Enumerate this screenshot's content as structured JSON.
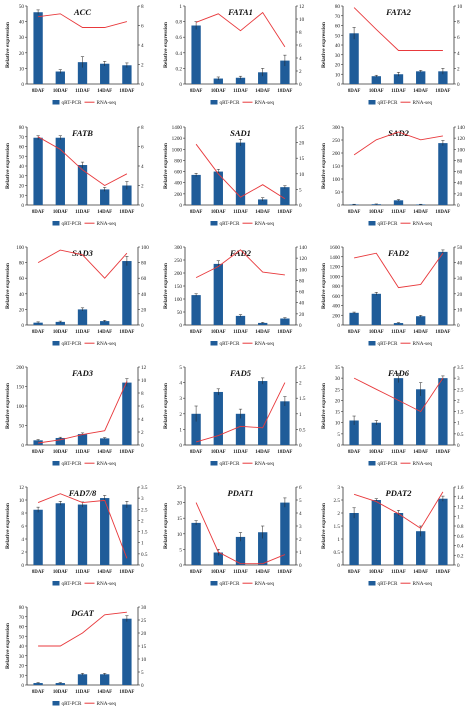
{
  "chart_data": [
    {
      "type": "bar",
      "title": "ACC",
      "categories": [
        "8DAF",
        "10DAF",
        "11DAF",
        "14DAF",
        "18DAF"
      ],
      "ylabel": "Relative expression",
      "ylim_left": [
        0,
        50
      ],
      "yticks_left": [
        0,
        10,
        20,
        30,
        40,
        50
      ],
      "ylim_right": [
        0,
        8
      ],
      "yticks_right": [
        0,
        2,
        4,
        6,
        8
      ],
      "series": [
        {
          "name": "qRT-PCR",
          "kind": "bar",
          "axis": "left",
          "color": "#1f5c99",
          "values": [
            46,
            8,
            14,
            13,
            12
          ],
          "errors": [
            1.5,
            1.2,
            3.5,
            1.5,
            1.5
          ]
        },
        {
          "name": "RNA-seq",
          "kind": "line",
          "axis": "right",
          "color": "#e8393c",
          "values": [
            6.9,
            7.2,
            5.8,
            5.8,
            6.4
          ]
        }
      ],
      "legend": "bottom"
    },
    {
      "type": "bar",
      "title": "FATA1",
      "categories": [
        "8DAF",
        "10DAF",
        "11DAF",
        "14DAF",
        "18DAF"
      ],
      "ylabel": "Relative expression",
      "ylim_left": [
        0,
        1
      ],
      "yticks_left": [
        0,
        0.2,
        0.4,
        0.6,
        0.8,
        1
      ],
      "ylim_right": [
        0,
        12
      ],
      "yticks_right": [
        0,
        2,
        4,
        6,
        8,
        10,
        12
      ],
      "series": [
        {
          "name": "qRT-PCR",
          "kind": "bar",
          "axis": "left",
          "color": "#1f5c99",
          "values": [
            0.75,
            0.07,
            0.08,
            0.15,
            0.3
          ],
          "errors": [
            0.05,
            0.02,
            0.02,
            0.05,
            0.07
          ]
        },
        {
          "name": "RNA-seq",
          "kind": "line",
          "axis": "right",
          "color": "#e8393c",
          "values": [
            9.5,
            10.8,
            8.2,
            11,
            5.7
          ]
        }
      ],
      "legend": "bottom"
    },
    {
      "type": "bar",
      "title": "FATA2",
      "categories": [
        "8DAF",
        "10DAF",
        "11DAF",
        "14DAF",
        "18DAF"
      ],
      "ylabel": "Relative expression",
      "ylim_left": [
        0,
        80
      ],
      "yticks_left": [
        0,
        10,
        20,
        30,
        40,
        50,
        60,
        70,
        80
      ],
      "ylim_right": [
        0,
        10
      ],
      "yticks_right": [
        0,
        2,
        4,
        6,
        8,
        10
      ],
      "series": [
        {
          "name": "qRT-PCR",
          "kind": "bar",
          "axis": "left",
          "color": "#1f5c99",
          "values": [
            52,
            8,
            10,
            13,
            13
          ],
          "errors": [
            6,
            1,
            2,
            1,
            3
          ]
        },
        {
          "name": "RNA-seq",
          "kind": "line",
          "axis": "right",
          "color": "#e8393c",
          "values": [
            9.8,
            7,
            4.3,
            4.3,
            4.3
          ]
        }
      ],
      "legend": "bottom"
    },
    {
      "type": "bar",
      "title": "FATB",
      "categories": [
        "8DAF",
        "10DAF",
        "11DAF",
        "14DAF",
        "18DAF"
      ],
      "ylabel": "Relative expression",
      "ylim_left": [
        0,
        80
      ],
      "yticks_left": [
        0,
        10,
        20,
        30,
        40,
        50,
        60,
        70,
        80
      ],
      "ylim_right": [
        0,
        8
      ],
      "yticks_right": [
        0,
        2,
        4,
        6,
        8
      ],
      "series": [
        {
          "name": "qRT-PCR",
          "kind": "bar",
          "axis": "left",
          "color": "#1f5c99",
          "values": [
            69,
            69,
            41,
            16,
            20
          ],
          "errors": [
            2,
            2,
            3,
            2,
            4
          ]
        },
        {
          "name": "RNA-seq",
          "kind": "line",
          "axis": "right",
          "color": "#e8393c",
          "values": [
            7,
            5.7,
            3.6,
            2,
            3.2
          ]
        }
      ],
      "legend": "bottom"
    },
    {
      "type": "bar",
      "title": "SAD1",
      "categories": [
        "8DAF",
        "10DAF",
        "11DAF",
        "14DAF",
        "18DAF"
      ],
      "ylabel": "Relative expression",
      "ylim_left": [
        0,
        1400
      ],
      "yticks_left": [
        0,
        200,
        400,
        600,
        800,
        1000,
        1200,
        1400
      ],
      "ylim_right": [
        0,
        25
      ],
      "yticks_right": [
        0,
        5,
        10,
        15,
        20,
        25
      ],
      "series": [
        {
          "name": "qRT-PCR",
          "kind": "bar",
          "axis": "left",
          "color": "#1f5c99",
          "values": [
            540,
            600,
            1120,
            100,
            320
          ],
          "errors": [
            30,
            40,
            60,
            30,
            25
          ]
        },
        {
          "name": "RNA-seq",
          "kind": "line",
          "axis": "right",
          "color": "#e8393c",
          "values": [
            19.5,
            10,
            2.5,
            6.5,
            2
          ]
        }
      ],
      "legend": "bottom"
    },
    {
      "type": "bar",
      "title": "SAD2",
      "categories": [
        "8DAF",
        "10DAF",
        "11DAF",
        "14DAF",
        "18DAF"
      ],
      "ylabel": "Relative expression",
      "ylim_left": [
        0,
        300
      ],
      "yticks_left": [
        0,
        50,
        100,
        150,
        200,
        250,
        300
      ],
      "ylim_right": [
        0,
        140
      ],
      "yticks_right": [
        0,
        20,
        40,
        60,
        80,
        100,
        120,
        140
      ],
      "series": [
        {
          "name": "qRT-PCR",
          "kind": "bar",
          "axis": "left",
          "color": "#1f5c99",
          "values": [
            2,
            3,
            18,
            2,
            238
          ],
          "errors": [
            1,
            1,
            3,
            1,
            10
          ]
        },
        {
          "name": "RNA-seq",
          "kind": "line",
          "axis": "right",
          "color": "#e8393c",
          "values": [
            90,
            117,
            131,
            117,
            124
          ]
        }
      ],
      "legend": "bottom"
    },
    {
      "type": "bar",
      "title": "SAD3",
      "categories": [
        "8DAF",
        "10DAF",
        "11DAF",
        "14DAF",
        "18DAF"
      ],
      "ylabel": "Relative expression",
      "ylim_left": [
        0,
        100
      ],
      "yticks_left": [
        0,
        20,
        40,
        60,
        80,
        100
      ],
      "ylim_right": [
        0,
        100
      ],
      "yticks_right": [
        0,
        20,
        40,
        60,
        80,
        100
      ],
      "series": [
        {
          "name": "qRT-PCR",
          "kind": "bar",
          "axis": "left",
          "color": "#1f5c99",
          "values": [
            3,
            4,
            20,
            5,
            82
          ],
          "errors": [
            1,
            1,
            2,
            1,
            6
          ]
        },
        {
          "name": "RNA-seq",
          "kind": "line",
          "axis": "right",
          "color": "#e8393c",
          "values": [
            80,
            96,
            90,
            60,
            92
          ]
        }
      ],
      "legend": "bottom"
    },
    {
      "type": "bar",
      "title": "FAD2",
      "categories": [
        "8DAF",
        "10DAF",
        "11DAF",
        "14DAF",
        "18DAF"
      ],
      "ylabel": "Relative expression",
      "ylim_left": [
        0,
        300
      ],
      "yticks_left": [
        0,
        50,
        100,
        150,
        200,
        250,
        300
      ],
      "ylim_right": [
        0,
        140
      ],
      "yticks_right": [
        0,
        20,
        40,
        60,
        80,
        100,
        120,
        140
      ],
      "series": [
        {
          "name": "qRT-PCR",
          "kind": "bar",
          "axis": "left",
          "color": "#1f5c99",
          "values": [
            115,
            235,
            35,
            8,
            25
          ],
          "errors": [
            5,
            12,
            5,
            2,
            3
          ]
        },
        {
          "name": "RNA-seq",
          "kind": "line",
          "axis": "right",
          "color": "#e8393c",
          "values": [
            85,
            105,
            135,
            95,
            90
          ]
        }
      ],
      "legend": "bottom"
    },
    {
      "type": "bar",
      "title": "FAD2",
      "categories": [
        "8DAF",
        "10DAF",
        "11DAF",
        "14DAF",
        "18DAF"
      ],
      "ylabel": "Relative expression",
      "ylim_left": [
        0,
        1600
      ],
      "yticks_left": [
        0,
        200,
        400,
        600,
        800,
        1000,
        1200,
        1400,
        1600
      ],
      "ylim_right": [
        0,
        50
      ],
      "yticks_right": [
        0,
        10,
        20,
        30,
        40,
        50
      ],
      "series": [
        {
          "name": "qRT-PCR",
          "kind": "bar",
          "axis": "left",
          "color": "#1f5c99",
          "values": [
            250,
            640,
            40,
            180,
            1500
          ],
          "errors": [
            15,
            30,
            10,
            20,
            40
          ]
        },
        {
          "name": "RNA-seq",
          "kind": "line",
          "axis": "right",
          "color": "#e8393c",
          "values": [
            43,
            46,
            24,
            26,
            46
          ]
        }
      ],
      "legend": "bottom"
    },
    {
      "type": "bar",
      "title": "FAD3",
      "categories": [
        "8DAF",
        "10DAF",
        "11DAF",
        "14DAF",
        "18DAF"
      ],
      "ylabel": "Relative expression",
      "ylim_left": [
        0,
        200
      ],
      "yticks_left": [
        0,
        50,
        100,
        150,
        200
      ],
      "ylim_right": [
        0,
        12
      ],
      "yticks_right": [
        0,
        2,
        4,
        6,
        8,
        10,
        12
      ],
      "series": [
        {
          "name": "qRT-PCR",
          "kind": "bar",
          "axis": "left",
          "color": "#1f5c99",
          "values": [
            12,
            18,
            28,
            17,
            160
          ],
          "errors": [
            2,
            2,
            3,
            2,
            10
          ]
        },
        {
          "name": "RNA-seq",
          "kind": "line",
          "axis": "right",
          "color": "#e8393c",
          "values": [
            0.3,
            0.8,
            1.6,
            2.2,
            9.8
          ]
        }
      ],
      "legend": "bottom"
    },
    {
      "type": "bar",
      "title": "FAD5",
      "categories": [
        "8DAF",
        "10DAF",
        "11DAF",
        "14DAF",
        "18DAF"
      ],
      "ylabel": "Relative expression",
      "ylim_left": [
        0,
        5
      ],
      "yticks_left": [
        0,
        1,
        2,
        3,
        4,
        5
      ],
      "ylim_right": [
        0,
        2.5
      ],
      "yticks_right": [
        0,
        0.5,
        1,
        1.5,
        2,
        2.5
      ],
      "series": [
        {
          "name": "qRT-PCR",
          "kind": "bar",
          "axis": "left",
          "color": "#1f5c99",
          "values": [
            2,
            3.4,
            2,
            4.1,
            2.8
          ],
          "errors": [
            0.5,
            0.2,
            0.3,
            0.2,
            0.3
          ]
        },
        {
          "name": "RNA-seq",
          "kind": "line",
          "axis": "right",
          "color": "#e8393c",
          "values": [
            0.1,
            0.3,
            0.6,
            0.55,
            2
          ]
        }
      ],
      "legend": "bottom"
    },
    {
      "type": "bar",
      "title": "FAD6",
      "categories": [
        "8DAF",
        "10DAF",
        "11DAF",
        "14DAF",
        "18DAF"
      ],
      "ylabel": "Relative expression",
      "ylim_left": [
        0,
        35
      ],
      "yticks_left": [
        0,
        5,
        10,
        15,
        20,
        25,
        30,
        35
      ],
      "ylim_right": [
        0,
        3.5
      ],
      "yticks_right": [
        0,
        0.5,
        1,
        1.5,
        2,
        2.5,
        3,
        3.5
      ],
      "series": [
        {
          "name": "qRT-PCR",
          "kind": "bar",
          "axis": "left",
          "color": "#1f5c99",
          "values": [
            11,
            10,
            30,
            25,
            30
          ],
          "errors": [
            2,
            1,
            2,
            3,
            1
          ]
        },
        {
          "name": "RNA-seq",
          "kind": "line",
          "axis": "right",
          "color": "#e8393c",
          "values": [
            3,
            2.5,
            2,
            1.5,
            3
          ]
        }
      ],
      "legend": "bottom"
    },
    {
      "type": "bar",
      "title": "FAD7/8",
      "categories": [
        "8DAF",
        "10DAF",
        "11DAF",
        "14DAF",
        "18DAF"
      ],
      "ylabel": "Relative expression",
      "ylim_left": [
        0,
        12
      ],
      "yticks_left": [
        0,
        2,
        4,
        6,
        8,
        10,
        12
      ],
      "ylim_right": [
        0,
        3.5
      ],
      "yticks_right": [
        0,
        0.5,
        1,
        1.5,
        2,
        2.5,
        3,
        3.5
      ],
      "series": [
        {
          "name": "qRT-PCR",
          "kind": "bar",
          "axis": "left",
          "color": "#1f5c99",
          "values": [
            8.5,
            9.5,
            9.3,
            10.3,
            9.3
          ],
          "errors": [
            0.4,
            0.3,
            0.4,
            0.4,
            0.5
          ]
        },
        {
          "name": "RNA-seq",
          "kind": "line",
          "axis": "right",
          "color": "#e8393c",
          "values": [
            2.8,
            3.2,
            2.8,
            2.9,
            0.3
          ]
        }
      ],
      "legend": "bottom"
    },
    {
      "type": "bar",
      "title": "PDAT1",
      "categories": [
        "8DAF",
        "10DAF",
        "11DAF",
        "14DAF",
        "18DAF"
      ],
      "ylabel": "Relative expression",
      "ylim_left": [
        0,
        25
      ],
      "yticks_left": [
        0,
        5,
        10,
        15,
        20,
        25
      ],
      "ylim_right": [
        0,
        6
      ],
      "yticks_right": [
        0,
        1,
        2,
        3,
        4,
        5,
        6
      ],
      "series": [
        {
          "name": "qRT-PCR",
          "kind": "bar",
          "axis": "left",
          "color": "#1f5c99",
          "values": [
            13.5,
            4,
            9,
            10.5,
            20
          ],
          "errors": [
            0.7,
            1,
            1.4,
            2,
            1.5
          ]
        },
        {
          "name": "RNA-seq",
          "kind": "line",
          "axis": "right",
          "color": "#e8393c",
          "values": [
            4.8,
            1,
            0.1,
            0.1,
            0.8
          ]
        }
      ],
      "legend": "bottom"
    },
    {
      "type": "bar",
      "title": "PDAT2",
      "categories": [
        "8DAF",
        "10DAF",
        "11DAF",
        "14DAF",
        "18DAF"
      ],
      "ylabel": "Relative expression",
      "ylim_left": [
        0,
        3
      ],
      "yticks_left": [
        0,
        0.5,
        1,
        1.5,
        2,
        2.5,
        3
      ],
      "ylim_right": [
        0,
        1.6
      ],
      "yticks_right": [
        0,
        0.2,
        0.4,
        0.6,
        0.8,
        1,
        1.2,
        1.4,
        1.6
      ],
      "series": [
        {
          "name": "qRT-PCR",
          "kind": "bar",
          "axis": "left",
          "color": "#1f5c99",
          "values": [
            2,
            2.5,
            2,
            1.3,
            2.55
          ],
          "errors": [
            0.2,
            0.05,
            0.1,
            0.2,
            0.1
          ]
        },
        {
          "name": "RNA-seq",
          "kind": "line",
          "axis": "right",
          "color": "#e8393c",
          "values": [
            1.45,
            1.3,
            1.05,
            0.75,
            1.5
          ]
        }
      ],
      "legend": "bottom"
    },
    {
      "type": "bar",
      "title": "DGAT",
      "categories": [
        "8DAF",
        "10DAF",
        "11DAF",
        "14DAF",
        "18DAF"
      ],
      "ylabel": "Relative expression",
      "ylim_left": [
        0,
        80
      ],
      "yticks_left": [
        0,
        10,
        20,
        30,
        40,
        50,
        60,
        70,
        80
      ],
      "ylim_right": [
        0,
        30
      ],
      "yticks_right": [
        0,
        5,
        10,
        15,
        20,
        25,
        30
      ],
      "series": [
        {
          "name": "qRT-PCR",
          "kind": "bar",
          "axis": "left",
          "color": "#1f5c99",
          "values": [
            2,
            2,
            11,
            11,
            68
          ],
          "errors": [
            0.5,
            0.5,
            1,
            1,
            3
          ]
        },
        {
          "name": "RNA-seq",
          "kind": "line",
          "axis": "right",
          "color": "#e8393c",
          "values": [
            15,
            15,
            20,
            27,
            28
          ]
        }
      ],
      "legend": "bottom"
    }
  ]
}
